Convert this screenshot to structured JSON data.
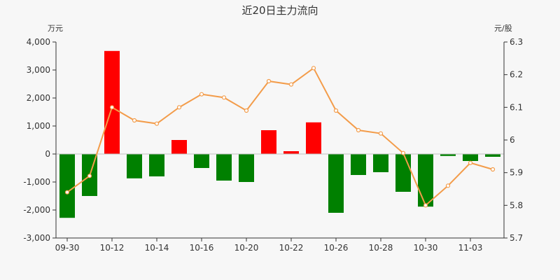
{
  "chart_data": {
    "type": "bar",
    "title": "近20日主力流向",
    "ylabel_left": "万元",
    "ylabel_right": "元/股",
    "ylim_left": [
      -3000,
      4000
    ],
    "ylim_right": [
      5.7,
      6.3
    ],
    "left_ticks": [
      {
        "value": 4000,
        "label": "4,000"
      },
      {
        "value": 3000,
        "label": "3,000"
      },
      {
        "value": 2000,
        "label": "2,000"
      },
      {
        "value": 1000,
        "label": "1,000"
      },
      {
        "value": 0,
        "label": "0"
      },
      {
        "value": -1000,
        "label": "-1,000"
      },
      {
        "value": -2000,
        "label": "-2,000"
      },
      {
        "value": -3000,
        "label": "-3,000"
      }
    ],
    "right_ticks": [
      {
        "value": 6.3,
        "label": "6.3"
      },
      {
        "value": 6.2,
        "label": "6.2"
      },
      {
        "value": 6.1,
        "label": "6.1"
      },
      {
        "value": 6.0,
        "label": "6"
      },
      {
        "value": 5.9,
        "label": "5.9"
      },
      {
        "value": 5.8,
        "label": "5.8"
      },
      {
        "value": 5.7,
        "label": "5.7"
      }
    ],
    "x_tick_labels": [
      {
        "index": 0,
        "label": "09-30"
      },
      {
        "index": 2,
        "label": "10-12"
      },
      {
        "index": 4,
        "label": "10-14"
      },
      {
        "index": 6,
        "label": "10-16"
      },
      {
        "index": 8,
        "label": "10-20"
      },
      {
        "index": 10,
        "label": "10-22"
      },
      {
        "index": 12,
        "label": "10-26"
      },
      {
        "index": 14,
        "label": "10-28"
      },
      {
        "index": 16,
        "label": "10-30"
      },
      {
        "index": 18,
        "label": "11-03"
      }
    ],
    "series": [
      {
        "type": "bar",
        "axis": "left",
        "values": [
          -2280,
          -1500,
          3680,
          -870,
          -800,
          500,
          -500,
          -950,
          -1000,
          850,
          100,
          1130,
          -2100,
          -750,
          -650,
          -1350,
          -1880,
          -70,
          -250,
          -100
        ]
      },
      {
        "type": "line",
        "axis": "right",
        "values": [
          5.84,
          5.89,
          6.1,
          6.06,
          6.05,
          6.1,
          6.14,
          6.13,
          6.09,
          6.18,
          6.17,
          6.22,
          6.09,
          6.03,
          6.02,
          5.96,
          5.8,
          5.86,
          5.93,
          5.91
        ]
      }
    ],
    "colors": {
      "positive": "#ff0000",
      "negative": "#008000",
      "line": "#f39c4a",
      "axis": "#333333",
      "zero_line": "#c0c0c0"
    },
    "grid": false
  }
}
